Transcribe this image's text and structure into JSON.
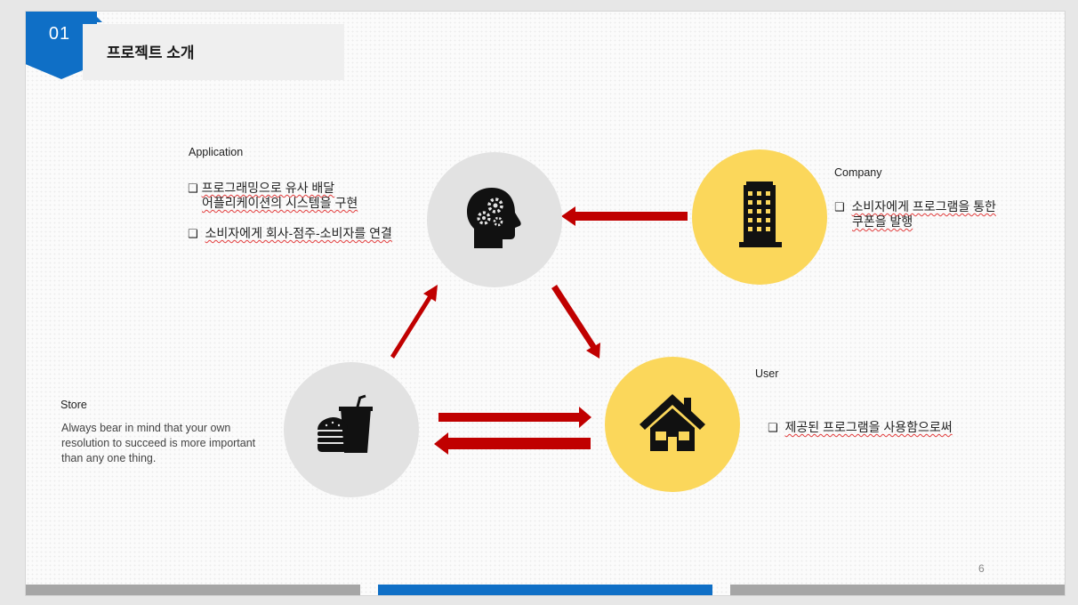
{
  "slide": {
    "number": "01",
    "title": "프로젝트 소개",
    "page": "6"
  },
  "application": {
    "label": "Application",
    "bullet1_line1": "프로그래밍으로 유사 배달",
    "bullet1_line2": "어플리케이션의 시스템을 구현",
    "bullet2": "소비자에게 회사-점주-소비자를 연결",
    "icon": "head-gears-icon"
  },
  "company": {
    "label": "Company",
    "bullet1_line1": "소비자에게 프로그램을 통한",
    "bullet1_line2": "쿠폰을 발행",
    "icon": "building-icon"
  },
  "user": {
    "label": "User",
    "bullet1": "제공된 프로그램을 사용함으로써",
    "icon": "house-icon"
  },
  "store": {
    "label": "Store",
    "desc_line1": "Always bear in mind that your own",
    "desc_line2": "resolution to succeed is more important",
    "desc_line3": "than any one thing.",
    "icon": "fast-food-icon"
  },
  "colors": {
    "accent_blue": "#0f6fc6",
    "arrow_red": "#c00000",
    "circle_gray": "#e2e2e2",
    "circle_yellow": "#fbd75b",
    "bar_gray": "#a6a6a6"
  }
}
